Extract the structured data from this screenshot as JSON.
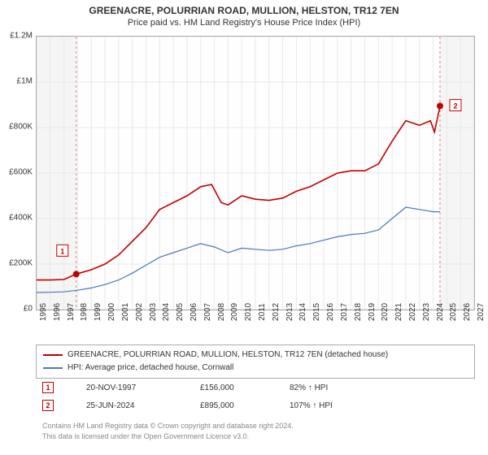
{
  "title": "GREENACRE, POLURRIAN ROAD, MULLION, HELSTON, TR12 7EN",
  "subtitle": "Price paid vs. HM Land Registry's House Price Index (HPI)",
  "chart": {
    "type": "line",
    "background_color": "#fefefe",
    "plot_border_color": "#aaaaaa",
    "grid_color": "#e8e8e8",
    "x_years": [
      1995,
      1996,
      1997,
      1998,
      1999,
      2000,
      2001,
      2002,
      2003,
      2004,
      2005,
      2006,
      2007,
      2008,
      2009,
      2010,
      2011,
      2012,
      2013,
      2014,
      2015,
      2016,
      2017,
      2018,
      2019,
      2020,
      2021,
      2022,
      2023,
      2024,
      2025,
      2026,
      2027
    ],
    "x_shade_start": 1995,
    "x_shade_end": 1997.9,
    "x_shade2_start": 2024.5,
    "x_shade2_end": 2027,
    "shade_color": "#f5f5f5",
    "shade_dash_color": "#c86464",
    "y_min": 0,
    "y_max": 1200000,
    "y_ticks": [
      0,
      200000,
      400000,
      600000,
      800000,
      1000000,
      1200000
    ],
    "y_tick_labels": [
      "£0",
      "£200K",
      "£400K",
      "£600K",
      "£800K",
      "£1M",
      "£1.2M"
    ],
    "series": [
      {
        "name": "property",
        "label": "GREENACRE, POLURRIAN ROAD, MULLION, HELSTON, TR12 7EN (detached house)",
        "color": "#c00000",
        "line_width": 1.6,
        "points": [
          [
            1995,
            130000
          ],
          [
            1996,
            130000
          ],
          [
            1997,
            132000
          ],
          [
            1997.9,
            156000
          ],
          [
            1999,
            175000
          ],
          [
            2000,
            200000
          ],
          [
            2001,
            240000
          ],
          [
            2002,
            300000
          ],
          [
            2003,
            360000
          ],
          [
            2004,
            440000
          ],
          [
            2005,
            470000
          ],
          [
            2006,
            500000
          ],
          [
            2007,
            540000
          ],
          [
            2007.8,
            550000
          ],
          [
            2008.5,
            470000
          ],
          [
            2009,
            460000
          ],
          [
            2010,
            500000
          ],
          [
            2011,
            485000
          ],
          [
            2012,
            480000
          ],
          [
            2013,
            490000
          ],
          [
            2014,
            520000
          ],
          [
            2015,
            540000
          ],
          [
            2016,
            570000
          ],
          [
            2017,
            600000
          ],
          [
            2018,
            610000
          ],
          [
            2019,
            610000
          ],
          [
            2020,
            640000
          ],
          [
            2021,
            740000
          ],
          [
            2022,
            830000
          ],
          [
            2023,
            810000
          ],
          [
            2023.8,
            830000
          ],
          [
            2024.1,
            780000
          ],
          [
            2024.5,
            895000
          ]
        ]
      },
      {
        "name": "hpi",
        "label": "HPI: Average price, detached house, Cornwall",
        "color": "#4a78b4",
        "line_width": 1.2,
        "points": [
          [
            1995,
            75000
          ],
          [
            1996,
            76000
          ],
          [
            1997,
            78000
          ],
          [
            1998,
            85000
          ],
          [
            1999,
            95000
          ],
          [
            2000,
            110000
          ],
          [
            2001,
            130000
          ],
          [
            2002,
            160000
          ],
          [
            2003,
            195000
          ],
          [
            2004,
            230000
          ],
          [
            2005,
            250000
          ],
          [
            2006,
            270000
          ],
          [
            2007,
            290000
          ],
          [
            2008,
            275000
          ],
          [
            2009,
            250000
          ],
          [
            2010,
            270000
          ],
          [
            2011,
            265000
          ],
          [
            2012,
            260000
          ],
          [
            2013,
            265000
          ],
          [
            2014,
            280000
          ],
          [
            2015,
            290000
          ],
          [
            2016,
            305000
          ],
          [
            2017,
            320000
          ],
          [
            2018,
            330000
          ],
          [
            2019,
            335000
          ],
          [
            2020,
            350000
          ],
          [
            2021,
            400000
          ],
          [
            2022,
            450000
          ],
          [
            2023,
            440000
          ],
          [
            2024,
            430000
          ],
          [
            2024.5,
            430000
          ]
        ]
      }
    ],
    "markers": [
      {
        "id": "1",
        "x": 1997.9,
        "y": 156000,
        "color": "#c00000",
        "date": "20-NOV-1997",
        "price": "£156,000",
        "hpi": "82% ↑ HPI",
        "badge_x_offset": -24,
        "badge_y_offset": -36
      },
      {
        "id": "2",
        "x": 2024.5,
        "y": 895000,
        "color": "#c00000",
        "date": "25-JUN-2024",
        "price": "£895,000",
        "hpi": "107% ↑ HPI",
        "badge_x_offset": 12,
        "badge_y_offset": -8
      }
    ]
  },
  "legend": {
    "items": [
      {
        "color": "#c00000",
        "label_path": "chart.series.0.label"
      },
      {
        "color": "#4a78b4",
        "label_path": "chart.series.1.label"
      }
    ]
  },
  "footer_line1": "Contains HM Land Registry data © Crown copyright and database right 2024.",
  "footer_line2": "This data is licensed under the Open Government Licence v3.0.",
  "fonts": {
    "title_size": 12,
    "subtitle_size": 11,
    "tick_size": 10,
    "legend_size": 10,
    "footer_size": 9
  }
}
